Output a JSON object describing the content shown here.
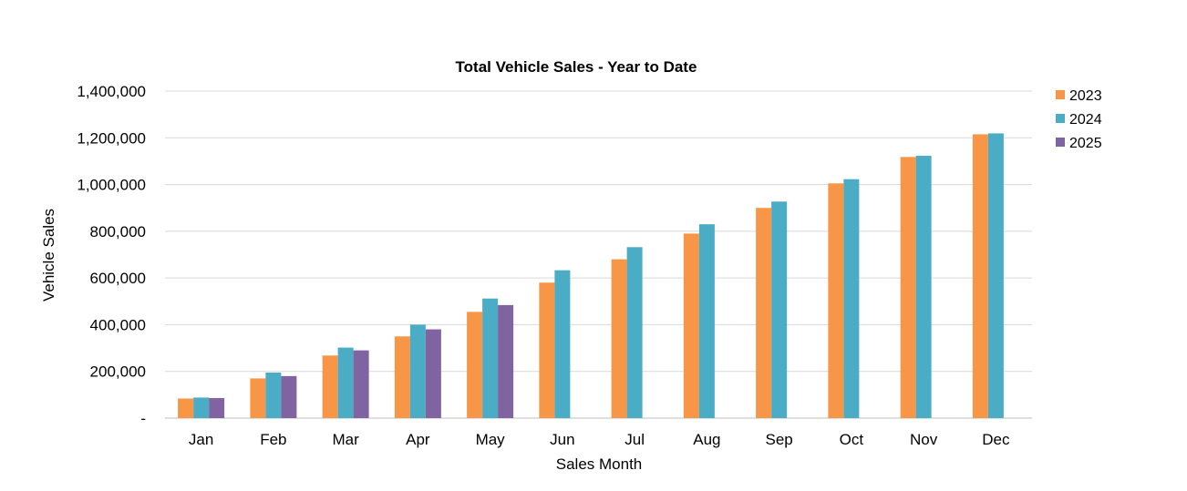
{
  "chart_data": {
    "type": "bar",
    "title": "Total Vehicle Sales - Year to Date",
    "xlabel": "Sales Month",
    "ylabel": "Vehicle Sales",
    "ylim": [
      0,
      1400000
    ],
    "yticks": [
      0,
      200000,
      400000,
      600000,
      800000,
      1000000,
      1200000,
      1400000
    ],
    "ytick_labels": [
      "-",
      "200,000",
      "400,000",
      "600,000",
      "800,000",
      "1,000,000",
      "1,200,000",
      "1,400,000"
    ],
    "categories": [
      "Jan",
      "Feb",
      "Mar",
      "Apr",
      "May",
      "Jun",
      "Jul",
      "Aug",
      "Sep",
      "Oct",
      "Nov",
      "Dec"
    ],
    "series": [
      {
        "name": "2023",
        "color": "#F79646",
        "values": [
          84000,
          170000,
          268000,
          350000,
          455000,
          580000,
          680000,
          790000,
          900000,
          1005000,
          1118000,
          1215000
        ]
      },
      {
        "name": "2024",
        "color": "#4BACC6",
        "values": [
          88000,
          195000,
          302000,
          400000,
          512000,
          633000,
          732000,
          830000,
          927000,
          1023000,
          1123000,
          1219000
        ]
      },
      {
        "name": "2025",
        "color": "#8064A2",
        "values": [
          86000,
          180000,
          290000,
          380000,
          484000,
          null,
          null,
          null,
          null,
          null,
          null,
          null
        ]
      }
    ],
    "grid": true,
    "legend_position": "right"
  }
}
